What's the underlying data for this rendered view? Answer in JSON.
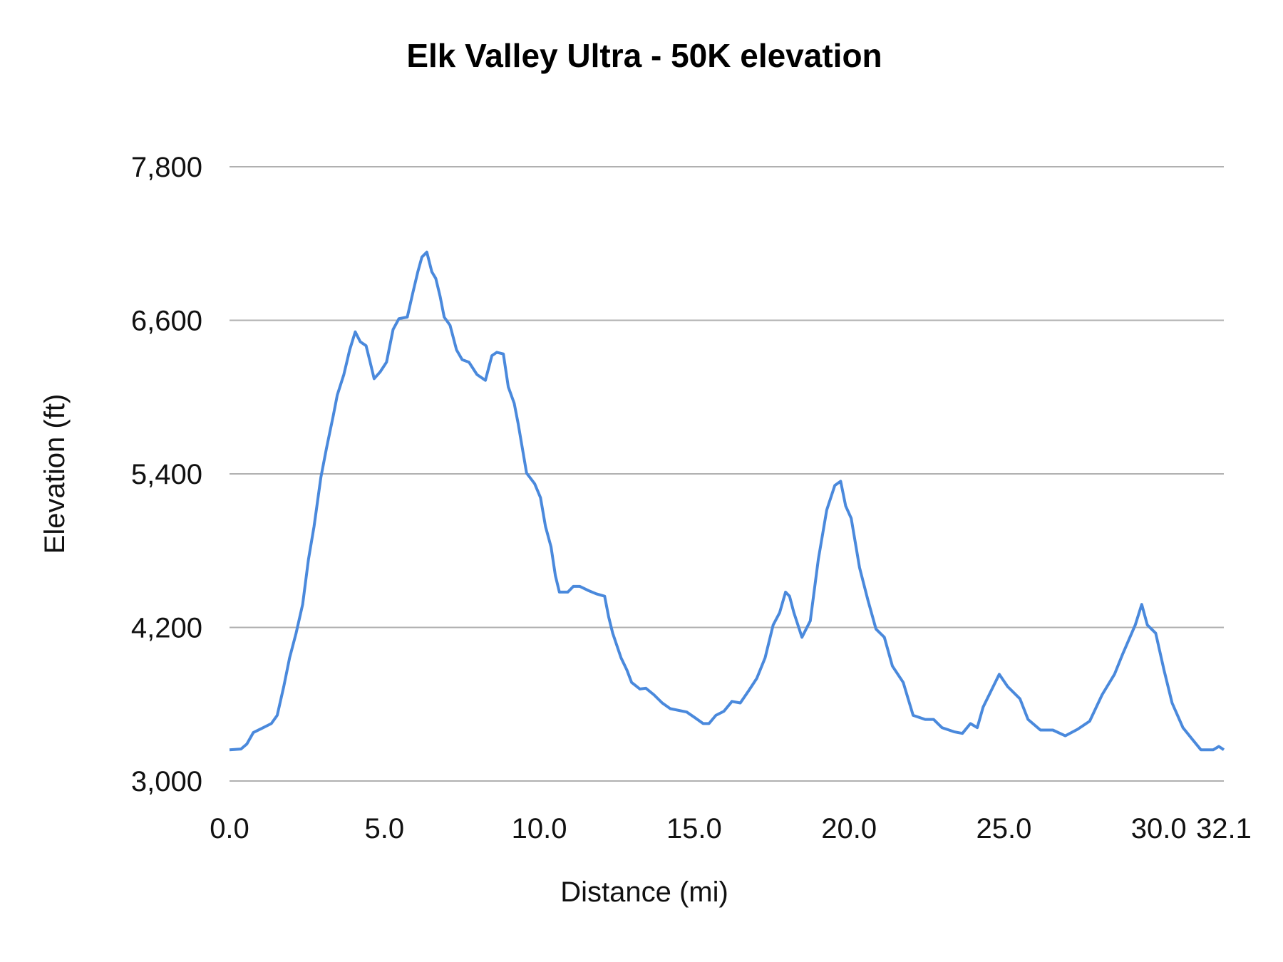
{
  "chart_data": {
    "type": "line",
    "title": "Elk Valley Ultra - 50K elevation",
    "xlabel": "Distance (mi)",
    "ylabel": "Elevation (ft)",
    "xlim": [
      0,
      32.1
    ],
    "ylim": [
      3000,
      7800
    ],
    "x_ticks": [
      "0.0",
      "5.0",
      "10.0",
      "15.0",
      "20.0",
      "25.0",
      "30.0",
      "32.1"
    ],
    "x_tick_values": [
      0,
      5,
      10,
      15,
      20,
      25,
      30,
      32.1
    ],
    "y_ticks": [
      "3,000",
      "4,200",
      "5,400",
      "6,600",
      "7,800"
    ],
    "y_tick_values": [
      3000,
      4200,
      5400,
      6600,
      7800
    ],
    "grid": "horizontal",
    "legend": "none",
    "colors": {
      "line": "#4a89dc",
      "grid": "#b0b0b0"
    },
    "series": [
      {
        "x": [
          0,
          0.37,
          0.56,
          0.77,
          1.04,
          1.35,
          1.54,
          1.75,
          1.94,
          2.15,
          2.36,
          2.55,
          2.73,
          2.95,
          3.13,
          3.35,
          3.48,
          3.69,
          3.88,
          4.06,
          4.22,
          4.41,
          4.54,
          4.67,
          4.86,
          5.07,
          5.28,
          5.47,
          5.74,
          5.92,
          6.08,
          6.21,
          6.37,
          6.53,
          6.66,
          6.8,
          6.93,
          7.12,
          7.33,
          7.51,
          7.73,
          7.99,
          8.26,
          8.47,
          8.63,
          8.84,
          9.0,
          9.19,
          9.32,
          9.59,
          9.85,
          10.04,
          10.2,
          10.38,
          10.52,
          10.65,
          10.92,
          11.1,
          11.31,
          11.58,
          11.84,
          12.11,
          12.24,
          12.37,
          12.64,
          12.83,
          12.98,
          13.25,
          13.44,
          13.7,
          13.97,
          14.23,
          14.76,
          15.03,
          15.29,
          15.48,
          15.7,
          15.96,
          16.22,
          16.49,
          16.76,
          17.02,
          17.29,
          17.55,
          17.76,
          17.95,
          18.08,
          18.22,
          18.48,
          18.75,
          19.01,
          19.28,
          19.54,
          19.73,
          19.89,
          20.07,
          20.34,
          20.61,
          20.87,
          21.14,
          21.4,
          21.75,
          22.07,
          22.46,
          22.73,
          23.0,
          23.39,
          23.66,
          23.92,
          24.14,
          24.33,
          24.59,
          24.85,
          25.12,
          25.52,
          25.78,
          26.18,
          26.58,
          26.98,
          27.38,
          27.77,
          28.17,
          28.57,
          28.84,
          29.24,
          29.45,
          29.63,
          29.9,
          30.17,
          30.43,
          30.78,
          31.1,
          31.36,
          31.76,
          31.94,
          32.1
        ],
        "y": [
          3244,
          3250,
          3289,
          3379,
          3411,
          3449,
          3513,
          3738,
          3963,
          4155,
          4380,
          4733,
          4989,
          5374,
          5599,
          5856,
          6016,
          6176,
          6369,
          6510,
          6433,
          6401,
          6273,
          6144,
          6196,
          6273,
          6529,
          6613,
          6625,
          6818,
          6979,
          7094,
          7133,
          6979,
          6927,
          6786,
          6625,
          6561,
          6369,
          6292,
          6273,
          6176,
          6131,
          6324,
          6350,
          6337,
          6080,
          5952,
          5791,
          5406,
          5323,
          5214,
          4989,
          4829,
          4604,
          4476,
          4476,
          4521,
          4521,
          4489,
          4463,
          4444,
          4283,
          4155,
          3963,
          3866,
          3770,
          3719,
          3725,
          3674,
          3610,
          3565,
          3539,
          3494,
          3449,
          3449,
          3513,
          3545,
          3622,
          3610,
          3706,
          3802,
          3963,
          4219,
          4315,
          4476,
          4444,
          4315,
          4123,
          4251,
          4733,
          5118,
          5310,
          5342,
          5150,
          5053,
          4668,
          4412,
          4187,
          4123,
          3898,
          3770,
          3513,
          3481,
          3481,
          3417,
          3385,
          3372,
          3449,
          3417,
          3578,
          3706,
          3834,
          3738,
          3642,
          3481,
          3398,
          3398,
          3353,
          3404,
          3468,
          3674,
          3834,
          3995,
          4219,
          4380,
          4219,
          4155,
          3866,
          3610,
          3417,
          3321,
          3244,
          3244,
          3270,
          3244
        ]
      }
    ]
  }
}
